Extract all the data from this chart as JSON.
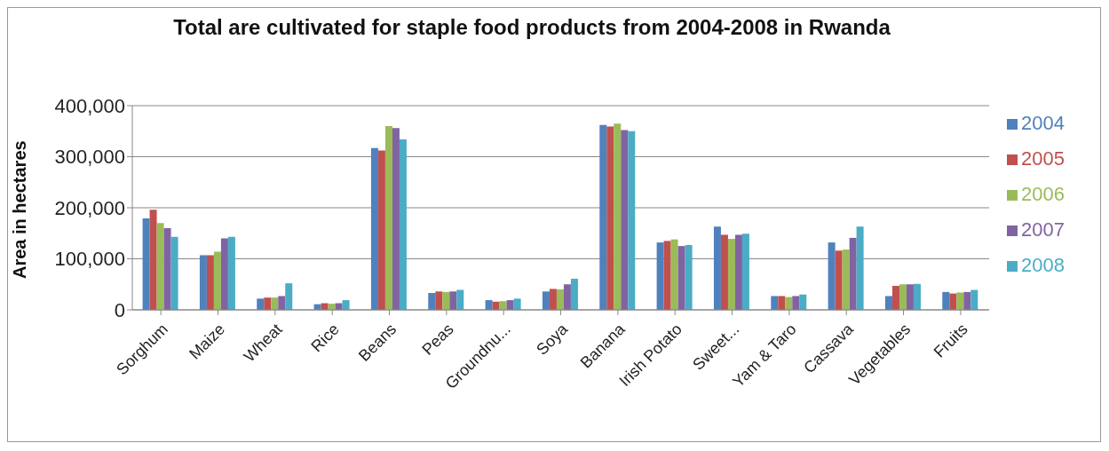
{
  "chart_data": {
    "type": "bar",
    "title": "Total are cultivated for staple food products from 2004-2008 in Rwanda",
    "ylabel": "Area in hectares",
    "categories": [
      "Sorghum",
      "Maize",
      "Wheat",
      "Rice",
      "Beans",
      "Peas",
      "Groundnu...",
      "Soya",
      "Banana",
      "Irish Potato",
      "Sweet...",
      "Yam & Taro",
      "Cassava",
      "Vegetables",
      "Fruits"
    ],
    "series": [
      {
        "name": "2004",
        "color": "#4f81bd",
        "values": [
          179000,
          107000,
          22000,
          11000,
          317000,
          33000,
          19000,
          36000,
          362000,
          132000,
          163000,
          27000,
          132000,
          27000,
          35000
        ]
      },
      {
        "name": "2005",
        "color": "#c0504d",
        "values": [
          196000,
          107000,
          24000,
          13000,
          312000,
          36000,
          16000,
          41000,
          359000,
          135000,
          147000,
          27000,
          116000,
          47000,
          32000
        ]
      },
      {
        "name": "2006",
        "color": "#9bbb59",
        "values": [
          170000,
          114000,
          24000,
          12000,
          360000,
          35000,
          17000,
          40000,
          365000,
          138000,
          139000,
          25000,
          118000,
          50000,
          34000
        ]
      },
      {
        "name": "2007",
        "color": "#8064a2",
        "values": [
          160000,
          140000,
          27000,
          13000,
          356000,
          36000,
          19000,
          50000,
          352000,
          125000,
          147000,
          27000,
          141000,
          50000,
          35000
        ]
      },
      {
        "name": "2008",
        "color": "#4bacc6",
        "values": [
          143000,
          143000,
          52000,
          19000,
          334000,
          39000,
          22000,
          61000,
          350000,
          127000,
          149000,
          30000,
          163000,
          51000,
          39000
        ]
      }
    ],
    "ylim": [
      0,
      400000
    ],
    "yticks": [
      {
        "value": 0,
        "label": "0"
      },
      {
        "value": 100000,
        "label": "100,000"
      },
      {
        "value": 200000,
        "label": "200,000"
      },
      {
        "value": 300000,
        "label": "300,000"
      },
      {
        "value": 400000,
        "label": "400,000"
      }
    ],
    "grid": "y",
    "legend": "right"
  }
}
